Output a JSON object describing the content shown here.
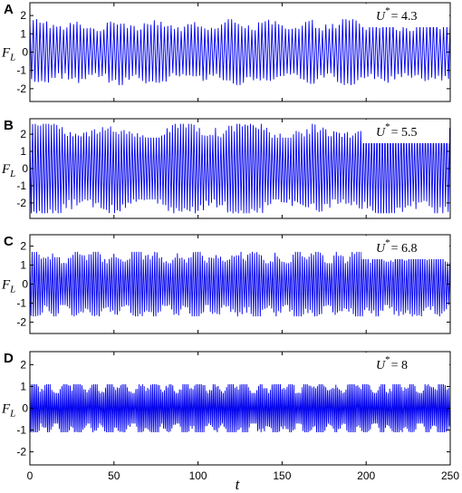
{
  "chart_data": {
    "type": "line",
    "ylabel": "F",
    "ylabel_sub": "L",
    "xlabel": "t",
    "xlim": [
      0,
      250
    ],
    "x_ticks": [
      0,
      50,
      100,
      150,
      200,
      250
    ],
    "line_color": "#0000ee",
    "grid": false,
    "panels": [
      {
        "letter": "A",
        "annotation_sym": "U",
        "annotation_sup": "*",
        "annotation_val": "= 4.3",
        "ylim": [
          -2.7,
          2.7
        ],
        "y_ticks": [
          -2,
          -1,
          0,
          1,
          2
        ],
        "signal": {
          "period": 2.0,
          "base_amplitude": 1.45,
          "mod_period": 23,
          "mod_depth": 0.12,
          "amp_min": 1.15,
          "amp_max": 1.8
        }
      },
      {
        "letter": "B",
        "annotation_sym": "U",
        "annotation_sup": "*",
        "annotation_val": "= 5.5",
        "ylim": [
          -2.9,
          2.9
        ],
        "y_ticks": [
          -2,
          -1,
          0,
          1,
          2
        ],
        "signal": {
          "period": 1.6,
          "base_amplitude": 2.2,
          "mod_period": 40,
          "mod_depth": 0.14,
          "amp_min": 1.8,
          "amp_max": 2.6
        }
      },
      {
        "letter": "C",
        "annotation_sym": "U",
        "annotation_sup": "*",
        "annotation_val": "= 6.8",
        "ylim": [
          -2.6,
          2.6
        ],
        "y_ticks": [
          -2,
          -1,
          0,
          1,
          2
        ],
        "signal": {
          "period": 1.35,
          "base_amplitude": 1.45,
          "mod_period": 12,
          "mod_depth": 0.18,
          "amp_min": 1.1,
          "amp_max": 1.7
        }
      },
      {
        "letter": "D",
        "annotation_sym": "U",
        "annotation_sup": "*",
        "annotation_val": "= 8",
        "ylim": [
          -2.6,
          2.6
        ],
        "y_ticks": [
          -2,
          -1,
          0,
          1,
          2
        ],
        "signal": {
          "period": 1.0,
          "base_amplitude": 1.0,
          "mod_period": 9,
          "mod_depth": 0.25,
          "amp_min": 0.7,
          "amp_max": 1.1
        }
      }
    ]
  }
}
